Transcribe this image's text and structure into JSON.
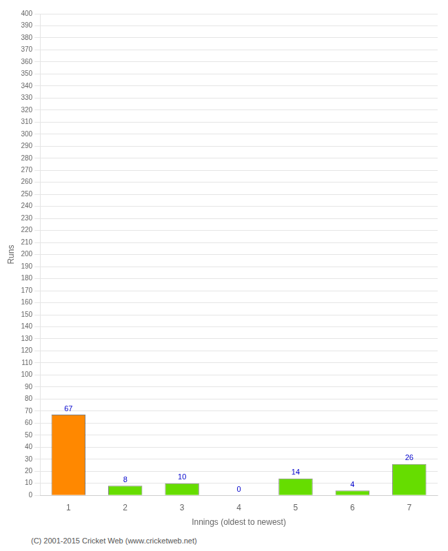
{
  "chart_data": {
    "type": "bar",
    "categories": [
      "1",
      "2",
      "3",
      "4",
      "5",
      "6",
      "7"
    ],
    "values": [
      67,
      8,
      10,
      0,
      14,
      4,
      26
    ],
    "colors": [
      "#ff8800",
      "#66dd00",
      "#66dd00",
      "#66dd00",
      "#66dd00",
      "#66dd00",
      "#66dd00"
    ],
    "xlabel": "Innings (oldest to newest)",
    "ylabel": "Runs",
    "ylim": [
      0,
      400
    ],
    "yticks": [
      0,
      10,
      20,
      30,
      40,
      50,
      60,
      70,
      80,
      90,
      100,
      110,
      120,
      130,
      140,
      150,
      160,
      170,
      180,
      190,
      200,
      210,
      220,
      230,
      240,
      250,
      260,
      270,
      280,
      290,
      300,
      310,
      320,
      330,
      340,
      350,
      360,
      370,
      380,
      390,
      400
    ],
    "grid": true,
    "data_labels": true,
    "annotations": [
      "(C) 2001-2015 Cricket Web (www.cricketweb.net)"
    ]
  }
}
